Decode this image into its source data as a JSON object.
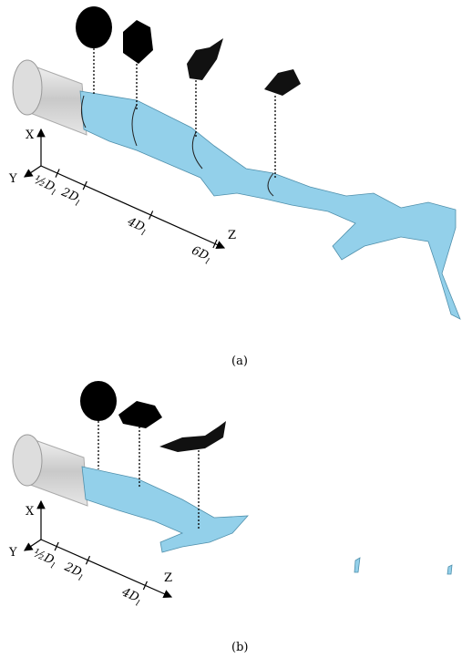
{
  "panels": [
    {
      "caption": "(a)",
      "axes": {
        "x": "X",
        "y": "Y",
        "z": "Z"
      },
      "ticks": [
        {
          "text": "½D",
          "subscript": "l"
        },
        {
          "text": "2D",
          "subscript": "l"
        },
        {
          "text": "4D",
          "subscript": "l"
        },
        {
          "text": "6D",
          "subscript": "l"
        }
      ]
    },
    {
      "caption": "(b)",
      "axes": {
        "x": "X",
        "y": "Y",
        "z": "Z"
      },
      "ticks": [
        {
          "text": "½D",
          "subscript": "l"
        },
        {
          "text": "2D",
          "subscript": "l"
        },
        {
          "text": "4D",
          "subscript": "l"
        }
      ]
    }
  ]
}
